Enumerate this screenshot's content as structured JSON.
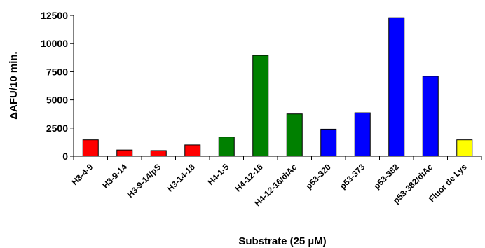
{
  "chart_data": {
    "type": "bar",
    "title": "",
    "xlabel": "Substrate (25 µM)",
    "ylabel": "ΔAFU/10 min.",
    "ylim": [
      0,
      12500
    ],
    "yticks": [
      0,
      2500,
      5000,
      7500,
      10000,
      12500
    ],
    "ytick_labels": [
      "0",
      "2500",
      "5000",
      "7500",
      "10000",
      "12500"
    ],
    "grid": false,
    "legend": "none",
    "categories": [
      "H3-4-9",
      "H3-9-14",
      "H3-9-14/pS",
      "H3-14-18",
      "H4-1-5",
      "H4-12-16",
      "H4-12-16/diAc",
      "p53-320",
      "p53-373",
      "p53-382",
      "p53-382/diAc",
      "Fluor de Lys"
    ],
    "values": [
      1450,
      550,
      500,
      1000,
      1700,
      8950,
      3750,
      2400,
      3850,
      12300,
      7100,
      1450
    ],
    "bar_colors": [
      "#ff0000",
      "#ff0000",
      "#ff0000",
      "#ff0000",
      "#008000",
      "#008000",
      "#008000",
      "#0000ff",
      "#0000ff",
      "#0000ff",
      "#0000ff",
      "#ffff00"
    ]
  }
}
